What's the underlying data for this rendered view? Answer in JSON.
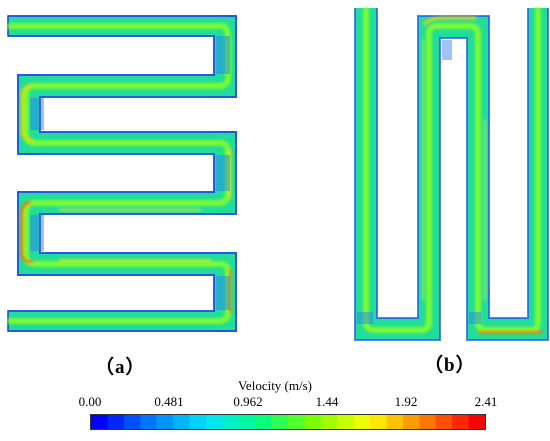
{
  "panels": [
    {
      "label": "（a）"
    },
    {
      "label": "（b）"
    }
  ],
  "colorbar": {
    "title": "Velocity (m/s)",
    "ticks": [
      "0.00",
      "0.481",
      "0.962",
      "1.44",
      "1.92",
      "2.41"
    ],
    "min": 0.0,
    "max": 2.41,
    "colors": [
      "#0000ff",
      "#0080ff",
      "#00e5ff",
      "#00ff80",
      "#80ff00",
      "#ffff00",
      "#ff8000",
      "#ff0000"
    ]
  }
}
